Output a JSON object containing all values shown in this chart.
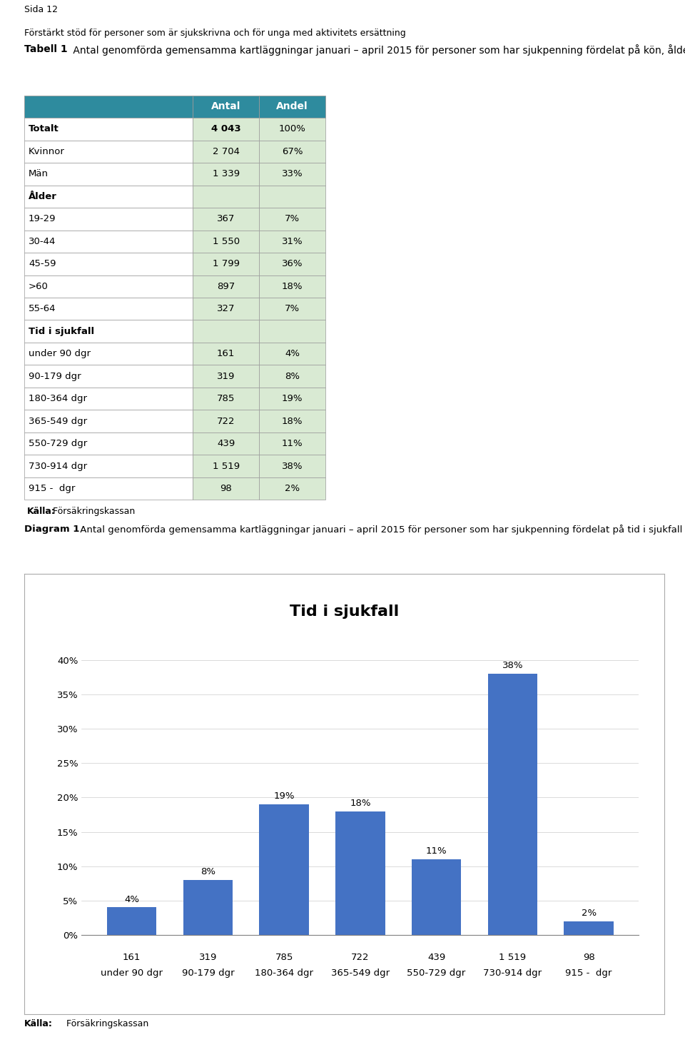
{
  "page_header_line1": "Sida 12",
  "page_header_line2": "Förstärkt stöd för personer som är sjukskrivna och för unga med aktivitets ersättning",
  "table_title_bold": "Tabell 1",
  "table_title_rest": " Antal genomförda gemensamma kartläggningar januari – april 2015 för personer som har sjukpenning fördelat på kön, ålder och tid i sjukfall",
  "table_header_color": "#2e8b9e",
  "table_header_text_color": "#ffffff",
  "table_data_bg_color": "#d9ead3",
  "table_border_color": "#999999",
  "table_col2_header": "Antal",
  "table_col3_header": "Andel",
  "table_rows": [
    {
      "label": "Totalt",
      "antal": "4 043",
      "andel": "100%",
      "bold": true,
      "header_section": false
    },
    {
      "label": "Kvinnor",
      "antal": "2 704",
      "andel": "67%",
      "bold": false,
      "header_section": false
    },
    {
      "label": "Män",
      "antal": "1 339",
      "andel": "33%",
      "bold": false,
      "header_section": false
    },
    {
      "label": "Ålder",
      "antal": "",
      "andel": "",
      "bold": true,
      "header_section": true
    },
    {
      "label": "19-29",
      "antal": "367",
      "andel": "7%",
      "bold": false,
      "header_section": false
    },
    {
      "label": "30-44",
      "antal": "1 550",
      "andel": "31%",
      "bold": false,
      "header_section": false
    },
    {
      "label": "45-59",
      "antal": "1 799",
      "andel": "36%",
      "bold": false,
      "header_section": false
    },
    {
      "label": ">60",
      "antal": "897",
      "andel": "18%",
      "bold": false,
      "header_section": false
    },
    {
      "label": "55-64",
      "antal": "327",
      "andel": "7%",
      "bold": false,
      "header_section": false
    },
    {
      "label": "Tid i sjukfall",
      "antal": "",
      "andel": "",
      "bold": true,
      "header_section": true
    },
    {
      "label": "under 90 dgr",
      "antal": "161",
      "andel": "4%",
      "bold": false,
      "header_section": false
    },
    {
      "label": "90-179 dgr",
      "antal": "319",
      "andel": "8%",
      "bold": false,
      "header_section": false
    },
    {
      "label": "180-364 dgr",
      "antal": "785",
      "andel": "19%",
      "bold": false,
      "header_section": false
    },
    {
      "label": "365-549 dgr",
      "antal": "722",
      "andel": "18%",
      "bold": false,
      "header_section": false
    },
    {
      "label": "550-729 dgr",
      "antal": "439",
      "andel": "11%",
      "bold": false,
      "header_section": false
    },
    {
      "label": "730-914 dgr",
      "antal": "1 519",
      "andel": "38%",
      "bold": false,
      "header_section": false
    },
    {
      "label": "915 -  dgr",
      "antal": "98",
      "andel": "2%",
      "bold": false,
      "header_section": false
    }
  ],
  "table_source_bold": "Källa:",
  "table_source_rest": " Försäkringskassan",
  "diagram_caption_bold": "Diagram 1",
  "diagram_caption_rest": " Antal genomförda gemensamma kartläggningar januari – april 2015 för personer som har sjukpenning fördelat på tid i sjukfall",
  "chart_title": "Tid i sjukfall",
  "bar_categories": [
    "under 90 dgr",
    "90-179 dgr",
    "180-364 dgr",
    "365-549 dgr",
    "550-729 dgr",
    "730-914 dgr",
    "915 -  dgr"
  ],
  "bar_values": [
    4,
    8,
    19,
    18,
    11,
    38,
    2
  ],
  "bar_counts": [
    "161",
    "319",
    "785",
    "722",
    "439",
    "1 519",
    "98"
  ],
  "bar_color": "#4472c4",
  "bar_labels": [
    "4%",
    "8%",
    "19%",
    "18%",
    "11%",
    "38%",
    "2%"
  ],
  "ytick_labels": [
    "0%",
    "5%",
    "10%",
    "15%",
    "20%",
    "25%",
    "30%",
    "35%",
    "40%"
  ],
  "ytick_values": [
    0,
    5,
    10,
    15,
    20,
    25,
    30,
    35,
    40
  ],
  "ylim": [
    0,
    43
  ],
  "chart_source_bold": "Källa:",
  "chart_source_rest": " Försäkringskassan",
  "bg_color": "#ffffff"
}
